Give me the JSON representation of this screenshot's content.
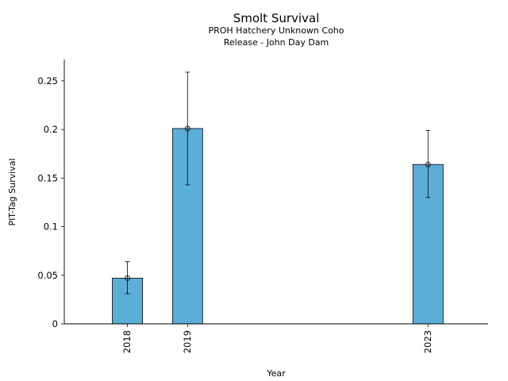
{
  "chart_data": {
    "type": "bar",
    "title": "Smolt Survival",
    "subtitle_lines": [
      "PROH Hatchery Unknown Coho",
      "Release - John Day Dam"
    ],
    "xlabel": "Year",
    "ylabel": "PIT-Tag Survival",
    "x": [
      2018,
      2019,
      2023
    ],
    "categories": [
      "2018",
      "2019",
      "2023"
    ],
    "values": [
      0.047,
      0.201,
      0.164
    ],
    "error_low": [
      0.031,
      0.143,
      0.13
    ],
    "error_high": [
      0.064,
      0.259,
      0.199
    ],
    "xlim": [
      2016.95,
      2024.0
    ],
    "ylim": [
      0,
      0.272
    ],
    "yticks": [
      0,
      0.05,
      0.1,
      0.15,
      0.2,
      0.25
    ],
    "ytick_labels": [
      "0",
      "0.05",
      "0.1",
      "0.15",
      "0.2",
      "0.25"
    ],
    "bar_color": "#5BAED8",
    "bar_edge_color": "#000000",
    "grid": false,
    "legend": "none"
  }
}
